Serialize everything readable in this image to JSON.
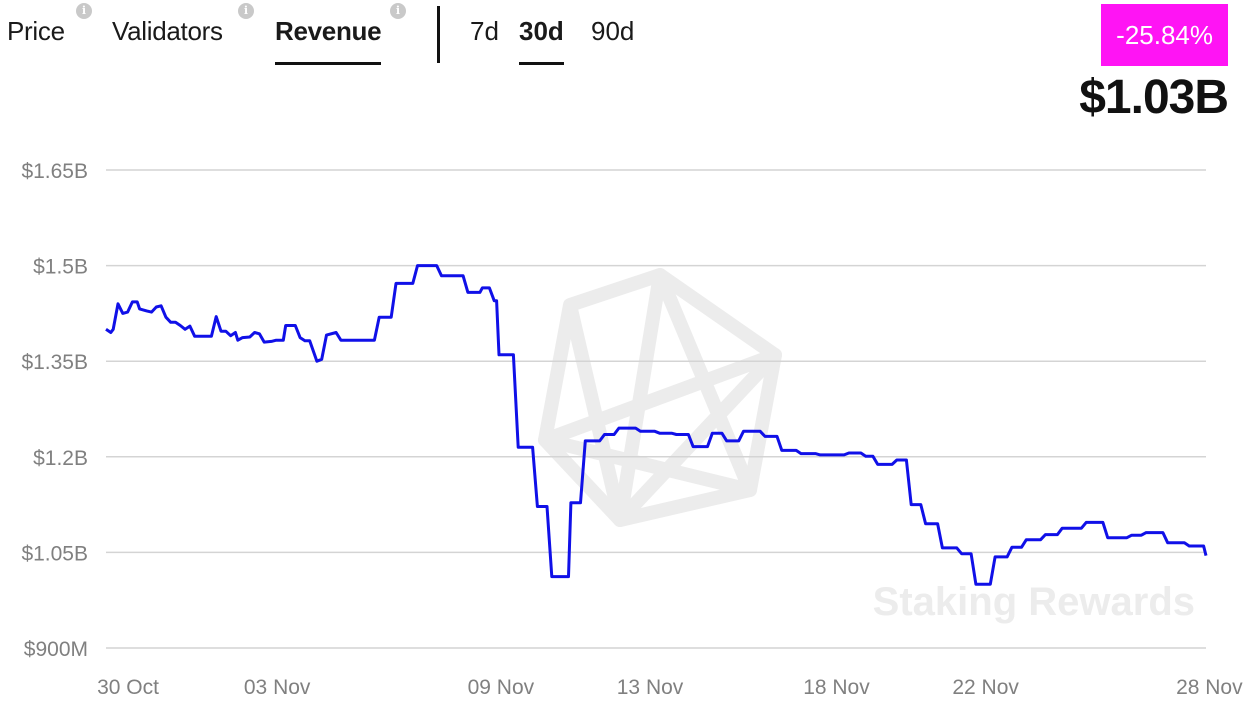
{
  "tabs": [
    {
      "label": "Price",
      "active": false
    },
    {
      "label": "Validators",
      "active": false
    },
    {
      "label": "Revenue",
      "active": true
    }
  ],
  "periods": [
    {
      "label": "7d",
      "active": false
    },
    {
      "label": "30d",
      "active": true
    },
    {
      "label": "90d",
      "active": false
    }
  ],
  "info_icon_glyph": "i",
  "change": "-25.84%",
  "current_value": "$1.03B",
  "watermark": "Staking Rewards",
  "colors": {
    "line": "#1010e8",
    "badge": "#ff14f4",
    "grid": "#d4d4d4",
    "axis_text": "#808080"
  },
  "chart_data": {
    "type": "line",
    "title": "",
    "xlabel": "",
    "ylabel": "",
    "y_ticks": [
      {
        "value": 900,
        "label": "$900M"
      },
      {
        "value": 1050,
        "label": "$1.05B"
      },
      {
        "value": 1200,
        "label": "$1.2B"
      },
      {
        "value": 1350,
        "label": "$1.35B"
      },
      {
        "value": 1500,
        "label": "$1.5B"
      },
      {
        "value": 1650,
        "label": "$1.65B"
      }
    ],
    "x_ticks": [
      {
        "value": 0,
        "label": "30 Oct"
      },
      {
        "value": 4,
        "label": "03 Nov"
      },
      {
        "value": 10,
        "label": "09 Nov"
      },
      {
        "value": 14,
        "label": "13 Nov"
      },
      {
        "value": 19,
        "label": "18 Nov"
      },
      {
        "value": 23,
        "label": "22 Nov"
      },
      {
        "value": 29,
        "label": "28 Nov"
      }
    ],
    "ylim": [
      900,
      1650
    ],
    "grid": true,
    "y_unit": "$M",
    "series": [
      {
        "points": [
          [
            0.0,
            1400
          ],
          [
            0.1,
            1395
          ],
          [
            0.15,
            1400
          ],
          [
            0.25,
            1440
          ],
          [
            0.35,
            1425
          ],
          [
            0.45,
            1427
          ],
          [
            0.55,
            1443
          ],
          [
            0.65,
            1443
          ],
          [
            0.7,
            1432
          ],
          [
            0.85,
            1429
          ],
          [
            0.95,
            1427
          ],
          [
            1.05,
            1435
          ],
          [
            1.15,
            1437
          ],
          [
            1.25,
            1419
          ],
          [
            1.35,
            1411
          ],
          [
            1.45,
            1411
          ],
          [
            1.55,
            1406
          ],
          [
            1.65,
            1400
          ],
          [
            1.75,
            1405
          ],
          [
            1.85,
            1389
          ],
          [
            2.2,
            1389
          ],
          [
            2.3,
            1420
          ],
          [
            2.4,
            1397
          ],
          [
            2.5,
            1397
          ],
          [
            2.6,
            1390
          ],
          [
            2.7,
            1395
          ],
          [
            2.75,
            1383
          ],
          [
            2.85,
            1387
          ],
          [
            3.0,
            1388
          ],
          [
            3.1,
            1395
          ],
          [
            3.2,
            1393
          ],
          [
            3.3,
            1380
          ],
          [
            3.45,
            1381
          ],
          [
            3.55,
            1383
          ],
          [
            3.7,
            1383
          ],
          [
            3.75,
            1406
          ],
          [
            3.95,
            1406
          ],
          [
            4.05,
            1387
          ],
          [
            4.15,
            1382
          ],
          [
            4.25,
            1382
          ],
          [
            4.4,
            1350
          ],
          [
            4.5,
            1353
          ],
          [
            4.6,
            1391
          ],
          [
            4.8,
            1395
          ],
          [
            4.9,
            1383
          ],
          [
            5.6,
            1383
          ],
          [
            5.7,
            1419
          ],
          [
            5.95,
            1419
          ],
          [
            6.05,
            1472
          ],
          [
            6.4,
            1472
          ],
          [
            6.5,
            1500
          ],
          [
            6.9,
            1500
          ],
          [
            7.0,
            1484
          ],
          [
            7.45,
            1484
          ],
          [
            7.55,
            1458
          ],
          [
            7.8,
            1458
          ],
          [
            7.85,
            1465
          ],
          [
            8.0,
            1465
          ],
          [
            8.1,
            1445
          ],
          [
            8.15,
            1445
          ],
          [
            8.2,
            1360
          ],
          [
            8.5,
            1360
          ],
          [
            8.6,
            1215
          ],
          [
            8.9,
            1215
          ],
          [
            9.0,
            1122
          ],
          [
            9.2,
            1122
          ],
          [
            9.3,
            1012
          ],
          [
            9.65,
            1012
          ],
          [
            9.7,
            1128
          ],
          [
            9.9,
            1128
          ],
          [
            10.0,
            1225
          ],
          [
            10.3,
            1225
          ],
          [
            10.4,
            1235
          ],
          [
            10.6,
            1235
          ],
          [
            10.7,
            1245
          ],
          [
            11.05,
            1245
          ],
          [
            11.15,
            1240
          ],
          [
            11.45,
            1240
          ],
          [
            11.55,
            1237
          ],
          [
            11.8,
            1237
          ],
          [
            11.9,
            1235
          ],
          [
            12.15,
            1235
          ],
          [
            12.25,
            1216
          ],
          [
            12.55,
            1216
          ],
          [
            12.65,
            1237
          ],
          [
            12.85,
            1237
          ],
          [
            12.95,
            1225
          ],
          [
            13.2,
            1225
          ],
          [
            13.3,
            1240
          ],
          [
            13.65,
            1240
          ],
          [
            13.75,
            1232
          ],
          [
            14.0,
            1232
          ],
          [
            14.1,
            1210
          ],
          [
            14.4,
            1210
          ],
          [
            14.5,
            1205
          ],
          [
            14.8,
            1205
          ],
          [
            14.9,
            1203
          ],
          [
            15.4,
            1203
          ],
          [
            15.5,
            1206
          ],
          [
            15.75,
            1206
          ],
          [
            15.85,
            1201
          ],
          [
            16.0,
            1201
          ],
          [
            16.1,
            1188
          ],
          [
            16.4,
            1188
          ],
          [
            16.5,
            1195
          ],
          [
            16.7,
            1195
          ],
          [
            16.8,
            1125
          ],
          [
            17.0,
            1125
          ],
          [
            17.1,
            1095
          ],
          [
            17.35,
            1095
          ],
          [
            17.45,
            1057
          ],
          [
            17.75,
            1057
          ],
          [
            17.85,
            1048
          ],
          [
            18.05,
            1048
          ],
          [
            18.15,
            1000
          ],
          [
            18.45,
            1000
          ],
          [
            18.55,
            1043
          ],
          [
            18.8,
            1043
          ],
          [
            18.9,
            1058
          ],
          [
            19.1,
            1058
          ],
          [
            19.2,
            1070
          ],
          [
            19.5,
            1070
          ],
          [
            19.6,
            1078
          ],
          [
            19.85,
            1078
          ],
          [
            19.95,
            1088
          ],
          [
            20.35,
            1088
          ],
          [
            20.45,
            1097
          ],
          [
            20.8,
            1097
          ],
          [
            20.9,
            1073
          ],
          [
            21.3,
            1073
          ],
          [
            21.4,
            1077
          ],
          [
            21.6,
            1077
          ],
          [
            21.7,
            1081
          ],
          [
            22.05,
            1081
          ],
          [
            22.15,
            1065
          ],
          [
            22.5,
            1065
          ],
          [
            22.6,
            1060
          ],
          [
            22.9,
            1060
          ],
          [
            22.95,
            1045
          ]
        ]
      }
    ]
  }
}
